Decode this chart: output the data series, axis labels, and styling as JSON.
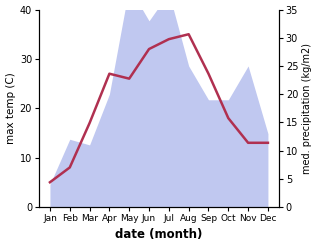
{
  "months": [
    "Jan",
    "Feb",
    "Mar",
    "Apr",
    "May",
    "Jun",
    "Jul",
    "Aug",
    "Sep",
    "Oct",
    "Nov",
    "Dec"
  ],
  "temperature": [
    5,
    8,
    17,
    27,
    26,
    32,
    34,
    35,
    27,
    18,
    13,
    13
  ],
  "precipitation": [
    4,
    12,
    11,
    20,
    39,
    33,
    38,
    25,
    19,
    19,
    25,
    13
  ],
  "temp_color": "#b03050",
  "precip_color": "#c0c8f0",
  "ylim_temp": [
    0,
    40
  ],
  "ylim_precip": [
    0,
    35
  ],
  "yticks_temp": [
    0,
    10,
    20,
    30,
    40
  ],
  "yticks_precip": [
    0,
    5,
    10,
    15,
    20,
    25,
    30,
    35
  ],
  "ylabel_left": "max temp (C)",
  "ylabel_right": "med. precipitation (kg/m2)",
  "xlabel": "date (month)",
  "bg_color": "#ffffff",
  "label_fontsize": 7.5,
  "xlabel_fontsize": 8.5
}
